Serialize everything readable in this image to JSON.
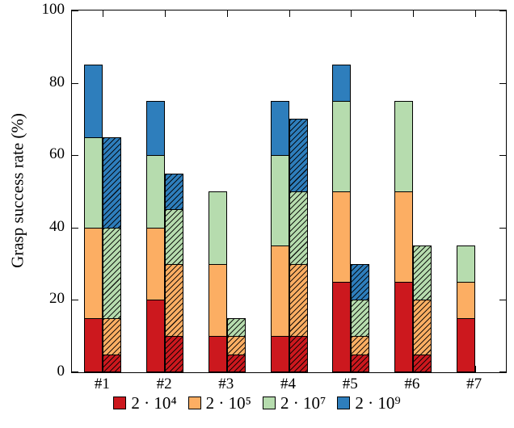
{
  "chart_data": {
    "type": "bar",
    "stacked": true,
    "bar_pairs": [
      "solid",
      "hatched"
    ],
    "title": "",
    "xlabel": "",
    "ylabel": "Grasp success rate (%)",
    "ylim": [
      0,
      100
    ],
    "yticks": [
      0,
      20,
      40,
      60,
      80,
      100
    ],
    "grid": false,
    "legend_position": "bottom",
    "categories": [
      "#1",
      "#2",
      "#3",
      "#4",
      "#5",
      "#6",
      "#7"
    ],
    "series": [
      {
        "name": "2 · 10⁴",
        "color": "#cc181e"
      },
      {
        "name": "2 · 10⁵",
        "color": "#fcae63"
      },
      {
        "name": "2 · 10⁷",
        "color": "#b6dcae"
      },
      {
        "name": "2 · 10⁹",
        "color": "#2e7ebc"
      }
    ],
    "bars": [
      {
        "category": "#1",
        "solid": [
          15,
          25,
          25,
          20
        ],
        "hatched": [
          5,
          10,
          25,
          25
        ]
      },
      {
        "category": "#2",
        "solid": [
          20,
          20,
          20,
          15
        ],
        "hatched": [
          10,
          20,
          15,
          10
        ]
      },
      {
        "category": "#3",
        "solid": [
          10,
          20,
          20,
          0
        ],
        "hatched": [
          5,
          5,
          5,
          0
        ]
      },
      {
        "category": "#4",
        "solid": [
          10,
          25,
          25,
          15
        ],
        "hatched": [
          10,
          20,
          20,
          20
        ]
      },
      {
        "category": "#5",
        "solid": [
          25,
          25,
          25,
          10
        ],
        "hatched": [
          5,
          5,
          10,
          10
        ]
      },
      {
        "category": "#6",
        "solid": [
          25,
          25,
          25,
          0
        ],
        "hatched": [
          5,
          15,
          15,
          0
        ]
      },
      {
        "category": "#7",
        "solid": [
          15,
          10,
          10,
          0
        ],
        "hatched": [
          0,
          0,
          0,
          0
        ]
      }
    ]
  }
}
